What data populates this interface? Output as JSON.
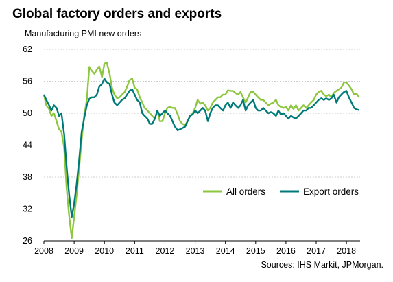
{
  "title": "Global factory orders and exports",
  "subtitle": "Manufacturing PMI new orders",
  "source": "Sources: IHS Markit, JPMorgan.",
  "chart_data": {
    "type": "line",
    "ylabel": "Manufacturing PMI new orders",
    "ylim": [
      26,
      62
    ],
    "yticks": [
      26,
      32,
      38,
      44,
      50,
      56,
      62
    ],
    "xlim": [
      2008.0,
      2018.45
    ],
    "xticks": [
      "2008",
      "2009",
      "2010",
      "2011",
      "2012",
      "2013",
      "2014",
      "2015",
      "2016",
      "2017",
      "2018"
    ],
    "grid": true,
    "legend_position": "lower-right",
    "series": [
      {
        "name": "All orders",
        "color": "#8dc63f",
        "points": [
          [
            2008.0,
            53.5
          ],
          [
            2008.08,
            51.5
          ],
          [
            2008.17,
            50.8
          ],
          [
            2008.25,
            49.5
          ],
          [
            2008.33,
            50.0
          ],
          [
            2008.42,
            48.5
          ],
          [
            2008.5,
            47.0
          ],
          [
            2008.58,
            46.5
          ],
          [
            2008.67,
            43.5
          ],
          [
            2008.75,
            36.0
          ],
          [
            2008.83,
            31.0
          ],
          [
            2008.92,
            26.5
          ],
          [
            2009.0,
            30.5
          ],
          [
            2009.08,
            34.5
          ],
          [
            2009.17,
            40.0
          ],
          [
            2009.25,
            45.0
          ],
          [
            2009.33,
            49.5
          ],
          [
            2009.42,
            52.5
          ],
          [
            2009.5,
            58.7
          ],
          [
            2009.58,
            58.0
          ],
          [
            2009.67,
            57.4
          ],
          [
            2009.75,
            58.2
          ],
          [
            2009.83,
            58.8
          ],
          [
            2009.92,
            56.8
          ],
          [
            2010.0,
            59.3
          ],
          [
            2010.08,
            59.5
          ],
          [
            2010.17,
            57.5
          ],
          [
            2010.25,
            54.8
          ],
          [
            2010.33,
            53.5
          ],
          [
            2010.42,
            52.8
          ],
          [
            2010.5,
            53.0
          ],
          [
            2010.58,
            53.5
          ],
          [
            2010.67,
            54.0
          ],
          [
            2010.75,
            55.0
          ],
          [
            2010.83,
            56.2
          ],
          [
            2010.92,
            56.5
          ],
          [
            2011.0,
            54.8
          ],
          [
            2011.08,
            54.5
          ],
          [
            2011.17,
            53.0
          ],
          [
            2011.25,
            52.0
          ],
          [
            2011.33,
            51.0
          ],
          [
            2011.42,
            50.5
          ],
          [
            2011.5,
            50.0
          ],
          [
            2011.58,
            49.5
          ],
          [
            2011.67,
            49.0
          ],
          [
            2011.75,
            50.5
          ],
          [
            2011.83,
            48.5
          ],
          [
            2011.92,
            48.5
          ],
          [
            2012.0,
            50.0
          ],
          [
            2012.08,
            51.0
          ],
          [
            2012.17,
            51.2
          ],
          [
            2012.25,
            51.0
          ],
          [
            2012.33,
            51.0
          ],
          [
            2012.42,
            49.8
          ],
          [
            2012.5,
            48.5
          ],
          [
            2012.58,
            48.0
          ],
          [
            2012.67,
            47.8
          ],
          [
            2012.75,
            48.5
          ],
          [
            2012.83,
            49.5
          ],
          [
            2012.92,
            50.0
          ],
          [
            2013.0,
            51.0
          ],
          [
            2013.08,
            52.5
          ],
          [
            2013.17,
            51.8
          ],
          [
            2013.25,
            52.0
          ],
          [
            2013.33,
            51.5
          ],
          [
            2013.42,
            50.5
          ],
          [
            2013.5,
            51.0
          ],
          [
            2013.58,
            52.0
          ],
          [
            2013.67,
            52.5
          ],
          [
            2013.75,
            53.0
          ],
          [
            2013.83,
            53.0
          ],
          [
            2013.92,
            53.5
          ],
          [
            2014.0,
            53.5
          ],
          [
            2014.08,
            54.3
          ],
          [
            2014.17,
            54.2
          ],
          [
            2014.25,
            54.2
          ],
          [
            2014.33,
            53.8
          ],
          [
            2014.42,
            53.5
          ],
          [
            2014.5,
            54.0
          ],
          [
            2014.58,
            53.0
          ],
          [
            2014.67,
            52.0
          ],
          [
            2014.75,
            53.0
          ],
          [
            2014.83,
            54.0
          ],
          [
            2014.92,
            54.0
          ],
          [
            2015.0,
            53.5
          ],
          [
            2015.08,
            53.0
          ],
          [
            2015.17,
            52.5
          ],
          [
            2015.25,
            52.5
          ],
          [
            2015.33,
            52.0
          ],
          [
            2015.42,
            51.5
          ],
          [
            2015.5,
            51.8
          ],
          [
            2015.58,
            52.0
          ],
          [
            2015.67,
            52.5
          ],
          [
            2015.75,
            51.5
          ],
          [
            2015.83,
            51.2
          ],
          [
            2015.92,
            51.0
          ],
          [
            2016.0,
            51.2
          ],
          [
            2016.08,
            50.5
          ],
          [
            2016.17,
            51.5
          ],
          [
            2016.25,
            50.8
          ],
          [
            2016.33,
            51.5
          ],
          [
            2016.42,
            50.5
          ],
          [
            2016.5,
            51.0
          ],
          [
            2016.58,
            51.5
          ],
          [
            2016.67,
            51.0
          ],
          [
            2016.75,
            51.5
          ],
          [
            2016.83,
            52.0
          ],
          [
            2016.92,
            52.5
          ],
          [
            2017.0,
            53.5
          ],
          [
            2017.08,
            54.0
          ],
          [
            2017.17,
            54.2
          ],
          [
            2017.25,
            53.5
          ],
          [
            2017.33,
            53.2
          ],
          [
            2017.42,
            53.5
          ],
          [
            2017.5,
            53.0
          ],
          [
            2017.58,
            53.8
          ],
          [
            2017.67,
            54.2
          ],
          [
            2017.75,
            54.5
          ],
          [
            2017.83,
            54.8
          ],
          [
            2017.92,
            55.8
          ],
          [
            2018.0,
            55.8
          ],
          [
            2018.08,
            55.2
          ],
          [
            2018.17,
            54.5
          ],
          [
            2018.25,
            53.5
          ],
          [
            2018.33,
            53.7
          ],
          [
            2018.42,
            53.0
          ]
        ]
      },
      {
        "name": "Export orders",
        "color": "#007a78",
        "points": [
          [
            2008.0,
            53.5
          ],
          [
            2008.08,
            52.5
          ],
          [
            2008.17,
            51.5
          ],
          [
            2008.25,
            50.5
          ],
          [
            2008.33,
            51.5
          ],
          [
            2008.42,
            51.0
          ],
          [
            2008.5,
            49.5
          ],
          [
            2008.58,
            50.0
          ],
          [
            2008.67,
            46.0
          ],
          [
            2008.75,
            40.0
          ],
          [
            2008.83,
            35.0
          ],
          [
            2008.92,
            30.5
          ],
          [
            2009.0,
            33.0
          ],
          [
            2009.08,
            36.5
          ],
          [
            2009.17,
            41.5
          ],
          [
            2009.25,
            46.5
          ],
          [
            2009.33,
            49.0
          ],
          [
            2009.42,
            51.5
          ],
          [
            2009.5,
            52.7
          ],
          [
            2009.58,
            53.0
          ],
          [
            2009.67,
            53.0
          ],
          [
            2009.75,
            53.5
          ],
          [
            2009.83,
            55.0
          ],
          [
            2009.92,
            55.5
          ],
          [
            2010.0,
            56.5
          ],
          [
            2010.08,
            55.8
          ],
          [
            2010.17,
            55.5
          ],
          [
            2010.25,
            53.5
          ],
          [
            2010.33,
            52.0
          ],
          [
            2010.42,
            51.5
          ],
          [
            2010.5,
            52.0
          ],
          [
            2010.58,
            52.5
          ],
          [
            2010.67,
            52.8
          ],
          [
            2010.75,
            53.5
          ],
          [
            2010.83,
            54.2
          ],
          [
            2010.92,
            54.5
          ],
          [
            2011.0,
            53.5
          ],
          [
            2011.08,
            52.5
          ],
          [
            2011.17,
            52.0
          ],
          [
            2011.25,
            50.0
          ],
          [
            2011.33,
            49.5
          ],
          [
            2011.42,
            49.0
          ],
          [
            2011.5,
            48.0
          ],
          [
            2011.58,
            48.0
          ],
          [
            2011.67,
            49.0
          ],
          [
            2011.75,
            50.5
          ],
          [
            2011.83,
            49.5
          ],
          [
            2011.92,
            50.0
          ],
          [
            2012.0,
            50.5
          ],
          [
            2012.08,
            50.0
          ],
          [
            2012.17,
            49.5
          ],
          [
            2012.25,
            48.5
          ],
          [
            2012.33,
            47.5
          ],
          [
            2012.42,
            46.8
          ],
          [
            2012.5,
            47.0
          ],
          [
            2012.58,
            47.2
          ],
          [
            2012.67,
            47.5
          ],
          [
            2012.75,
            48.5
          ],
          [
            2012.83,
            49.5
          ],
          [
            2012.92,
            49.8
          ],
          [
            2013.0,
            50.5
          ],
          [
            2013.08,
            50.0
          ],
          [
            2013.17,
            50.5
          ],
          [
            2013.25,
            51.0
          ],
          [
            2013.33,
            50.5
          ],
          [
            2013.42,
            48.5
          ],
          [
            2013.5,
            50.0
          ],
          [
            2013.58,
            51.0
          ],
          [
            2013.67,
            51.5
          ],
          [
            2013.75,
            51.5
          ],
          [
            2013.83,
            51.0
          ],
          [
            2013.92,
            50.5
          ],
          [
            2014.0,
            51.5
          ],
          [
            2014.08,
            52.0
          ],
          [
            2014.17,
            51.0
          ],
          [
            2014.25,
            52.0
          ],
          [
            2014.33,
            51.5
          ],
          [
            2014.42,
            51.0
          ],
          [
            2014.5,
            51.5
          ],
          [
            2014.58,
            52.5
          ],
          [
            2014.67,
            50.5
          ],
          [
            2014.75,
            51.5
          ],
          [
            2014.83,
            52.0
          ],
          [
            2014.92,
            52.5
          ],
          [
            2015.0,
            51.0
          ],
          [
            2015.08,
            50.5
          ],
          [
            2015.17,
            50.5
          ],
          [
            2015.25,
            51.0
          ],
          [
            2015.33,
            50.5
          ],
          [
            2015.42,
            50.0
          ],
          [
            2015.5,
            50.2
          ],
          [
            2015.58,
            50.0
          ],
          [
            2015.67,
            49.5
          ],
          [
            2015.75,
            50.5
          ],
          [
            2015.83,
            49.8
          ],
          [
            2015.92,
            50.0
          ],
          [
            2016.0,
            49.5
          ],
          [
            2016.08,
            49.0
          ],
          [
            2016.17,
            49.5
          ],
          [
            2016.25,
            49.2
          ],
          [
            2016.33,
            49.0
          ],
          [
            2016.42,
            49.5
          ],
          [
            2016.5,
            50.0
          ],
          [
            2016.58,
            50.5
          ],
          [
            2016.67,
            50.5
          ],
          [
            2016.75,
            51.0
          ],
          [
            2016.83,
            51.0
          ],
          [
            2016.92,
            51.5
          ],
          [
            2017.0,
            52.0
          ],
          [
            2017.08,
            52.5
          ],
          [
            2017.17,
            52.8
          ],
          [
            2017.25,
            52.5
          ],
          [
            2017.33,
            52.8
          ],
          [
            2017.42,
            52.5
          ],
          [
            2017.5,
            52.8
          ],
          [
            2017.58,
            53.5
          ],
          [
            2017.67,
            52.0
          ],
          [
            2017.75,
            53.0
          ],
          [
            2017.83,
            53.5
          ],
          [
            2017.92,
            54.0
          ],
          [
            2018.0,
            54.2
          ],
          [
            2018.08,
            53.0
          ],
          [
            2018.17,
            52.0
          ],
          [
            2018.25,
            51.0
          ],
          [
            2018.33,
            50.7
          ],
          [
            2018.42,
            50.6
          ]
        ]
      }
    ]
  }
}
